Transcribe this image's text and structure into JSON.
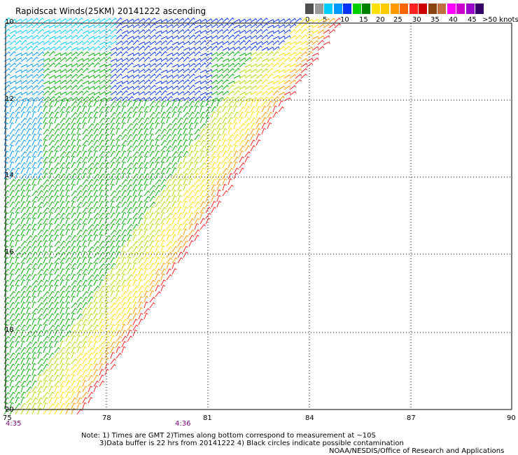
{
  "title": "Rapidscat Winds(25KM) 20141222 ascending",
  "legend": {
    "colors": [
      "#505050",
      "#9a9a9a",
      "#00ccff",
      "#0099ff",
      "#0033ff",
      "#00d000",
      "#008000",
      "#ffe000",
      "#ffcc00",
      "#ff9900",
      "#ff6600",
      "#ff2222",
      "#cc0000",
      "#8b4513",
      "#c07040",
      "#ff00ff",
      "#cc00cc",
      "#9900cc",
      "#330066"
    ],
    "labels": [
      "0",
      "5",
      "10",
      "15",
      "20",
      "25",
      "30",
      "35",
      "40",
      "45",
      ">50 knots"
    ]
  },
  "lat_labels": [
    "10",
    "12",
    "14",
    "16",
    "18",
    "20"
  ],
  "lon_labels": [
    "75",
    "78",
    "81",
    "84",
    "87",
    "90"
  ],
  "times": [
    "4:35",
    "4:36"
  ],
  "notes": {
    "line1": "Note: 1) Times are GMT 2)Times along bottom correspond to measurement at ~10S",
    "line2": "3)Data buffer is 22 hrs from 20141222 4) Black circles indicate possible contamination",
    "credit": "NOAA/NESDIS/Office of Research and Applications"
  }
}
